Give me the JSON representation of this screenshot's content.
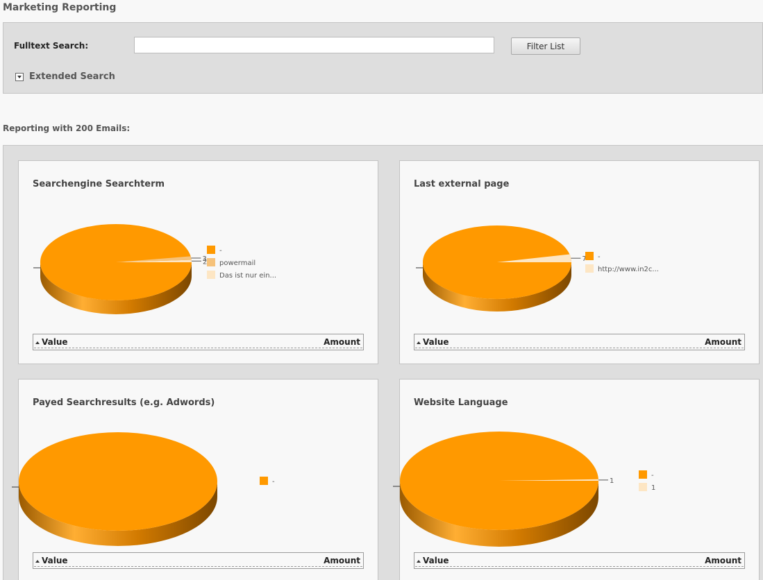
{
  "page": {
    "title": "Marketing Reporting"
  },
  "search": {
    "fulltext_label": "Fulltext Search:",
    "fulltext_value": "",
    "fulltext_placeholder": "",
    "filter_button": "Filter List",
    "extended_label": "Extended Search"
  },
  "report": {
    "label": "Reporting with 200 Emails:"
  },
  "table_headers": {
    "value": "Value",
    "amount": "Amount"
  },
  "colors": {
    "orange": "#ff9900",
    "light_orange": "#f6c27a",
    "cream": "#fde6c4",
    "dark_orange": "#8a5300"
  },
  "chart_data": [
    {
      "type": "pie",
      "title": "Searchengine Searchterm",
      "labels": [
        "-",
        "powermail",
        "Das ist nur ein..."
      ],
      "values": [
        195,
        3,
        2
      ],
      "colors": [
        "#ff9900",
        "#f6c27a",
        "#fde6c4"
      ],
      "slice_labels": [
        "",
        "3",
        "2"
      ]
    },
    {
      "type": "pie",
      "title": "Last external page",
      "labels": [
        "-",
        "http://www.in2c..."
      ],
      "values": [
        193,
        7
      ],
      "colors": [
        "#ff9900",
        "#fde6c4"
      ],
      "slice_labels": [
        "",
        "7"
      ]
    },
    {
      "type": "pie",
      "title": "Payed Searchresults (e.g. Adwords)",
      "labels": [
        "-"
      ],
      "values": [
        200
      ],
      "colors": [
        "#ff9900"
      ],
      "slice_labels": [
        ""
      ]
    },
    {
      "type": "pie",
      "title": "Website Language",
      "labels": [
        "-",
        "1"
      ],
      "values": [
        199,
        1
      ],
      "colors": [
        "#ff9900",
        "#fde6c4"
      ],
      "slice_labels": [
        "",
        "1"
      ]
    }
  ]
}
